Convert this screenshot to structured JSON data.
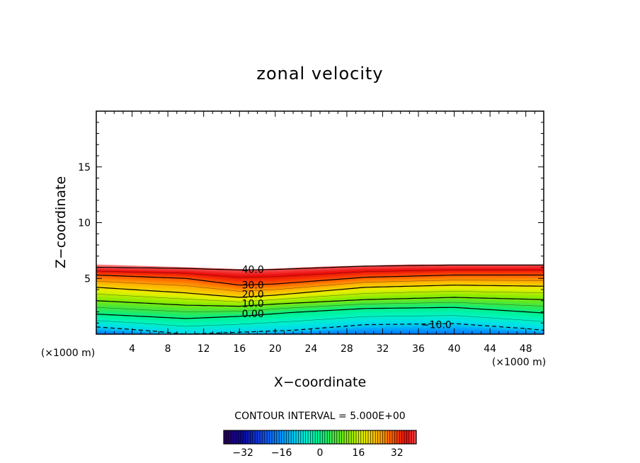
{
  "chart_data": {
    "type": "heatmap",
    "title": "zonal velocity",
    "xlabel": "X−coordinate",
    "ylabel": "Z−coordinate",
    "x_unit_left": "(×1000 m)",
    "x_unit_right": "(×1000 m)",
    "xlim": [
      0,
      50
    ],
    "ylim": [
      0,
      20
    ],
    "x_ticks": [
      4,
      8,
      12,
      16,
      20,
      24,
      28,
      32,
      36,
      40,
      44,
      48
    ],
    "y_ticks": [
      5,
      10,
      15
    ],
    "x_tick_labels": [
      "4",
      "8",
      "12",
      "16",
      "20",
      "24",
      "28",
      "32",
      "36",
      "40",
      "44",
      "48"
    ],
    "y_tick_labels": [
      "5",
      "10",
      "15"
    ],
    "contour_interval_text": "CONTOUR INTERVAL = 5.000E+00",
    "contour_interval": 5,
    "contour_labels": [
      {
        "text": "40.0",
        "x": 17.5,
        "z": 5.8
      },
      {
        "text": "30.0",
        "x": 17.5,
        "z": 4.4
      },
      {
        "text": "20.0",
        "x": 17.5,
        "z": 3.6
      },
      {
        "text": "10.0",
        "x": 17.5,
        "z": 2.75
      },
      {
        "text": "0.00",
        "x": 17.5,
        "z": 1.85
      },
      {
        "text": "−10.0",
        "x": 38,
        "z": 0.85
      }
    ],
    "colorbar": {
      "min": -40,
      "max": 40,
      "ticks": [
        -32,
        -16,
        0,
        16,
        32
      ],
      "tick_labels": [
        "−32",
        "−16",
        "0",
        "16",
        "32"
      ]
    },
    "field_model": {
      "surface_height": [
        [
          0,
          6.25
        ],
        [
          10,
          6.0
        ],
        [
          17.5,
          5.8
        ],
        [
          25,
          6.05
        ],
        [
          35,
          6.25
        ],
        [
          50,
          6.25
        ]
      ],
      "contour_heights": {
        "40": [
          [
            0,
            6.0
          ],
          [
            10,
            5.9
          ],
          [
            16,
            5.75
          ],
          [
            20,
            5.8
          ],
          [
            30,
            6.1
          ],
          [
            40,
            6.2
          ],
          [
            50,
            6.2
          ]
        ],
        "30": [
          [
            0,
            5.3
          ],
          [
            10,
            5.0
          ],
          [
            16,
            4.4
          ],
          [
            20,
            4.5
          ],
          [
            30,
            5.1
          ],
          [
            40,
            5.3
          ],
          [
            50,
            5.3
          ]
        ],
        "20": [
          [
            0,
            4.2
          ],
          [
            10,
            3.7
          ],
          [
            16,
            3.3
          ],
          [
            20,
            3.5
          ],
          [
            30,
            4.2
          ],
          [
            40,
            4.4
          ],
          [
            50,
            4.3
          ]
        ],
        "10": [
          [
            0,
            3.0
          ],
          [
            10,
            2.6
          ],
          [
            16,
            2.5
          ],
          [
            20,
            2.7
          ],
          [
            30,
            3.1
          ],
          [
            40,
            3.3
          ],
          [
            50,
            3.1
          ]
        ],
        "0": [
          [
            0,
            1.8
          ],
          [
            10,
            1.4
          ],
          [
            16,
            1.6
          ],
          [
            22,
            1.95
          ],
          [
            30,
            2.3
          ],
          [
            40,
            2.4
          ],
          [
            50,
            1.9
          ]
        ],
        "-10": [
          [
            0,
            0.65
          ],
          [
            6,
            0.3
          ],
          [
            10,
            0.0
          ],
          [
            22,
            0.35
          ],
          [
            30,
            0.85
          ],
          [
            40,
            0.95
          ],
          [
            48,
            0.5
          ],
          [
            50,
            0.35
          ]
        ]
      }
    }
  }
}
